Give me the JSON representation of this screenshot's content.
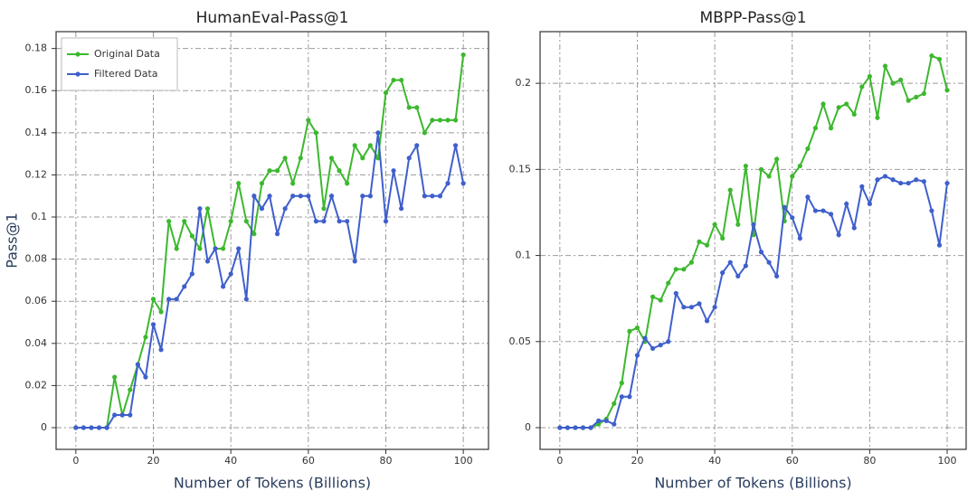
{
  "chart_data": [
    {
      "type": "line",
      "title": "HumanEval-Pass@1",
      "xlabel": "Number of Tokens (Billions)",
      "ylabel": "Pass@1",
      "x": [
        0,
        2,
        4,
        6,
        8,
        10,
        12,
        14,
        16,
        18,
        20,
        22,
        24,
        26,
        28,
        30,
        32,
        34,
        36,
        38,
        40,
        42,
        44,
        46,
        48,
        50,
        52,
        54,
        56,
        58,
        60,
        62,
        64,
        66,
        68,
        70,
        72,
        74,
        76,
        78,
        80,
        82,
        84,
        86,
        88,
        90,
        92,
        94,
        96,
        98,
        100
      ],
      "series": [
        {
          "name": "Original Data",
          "color": "#3cb82e",
          "values": [
            0,
            0,
            0,
            0,
            0,
            0.024,
            0.006,
            0.018,
            0.03,
            0.043,
            0.061,
            0.055,
            0.098,
            0.085,
            0.098,
            0.091,
            0.085,
            0.104,
            0.085,
            0.085,
            0.098,
            0.116,
            0.098,
            0.092,
            0.116,
            0.122,
            0.122,
            0.128,
            0.116,
            0.128,
            0.146,
            0.14,
            0.104,
            0.128,
            0.122,
            0.116,
            0.134,
            0.128,
            0.134,
            0.128,
            0.159,
            0.165,
            0.165,
            0.152,
            0.152,
            0.14,
            0.146,
            0.146,
            0.146,
            0.146,
            0.177
          ]
        },
        {
          "name": "Filtered Data",
          "color": "#3f5fcc",
          "values": [
            0,
            0,
            0,
            0,
            0,
            0.006,
            0.006,
            0.006,
            0.03,
            0.024,
            0.049,
            0.037,
            0.061,
            0.061,
            0.067,
            0.073,
            0.104,
            0.079,
            0.085,
            0.067,
            0.073,
            0.085,
            0.061,
            0.11,
            0.104,
            0.11,
            0.092,
            0.104,
            0.11,
            0.11,
            0.11,
            0.098,
            0.098,
            0.11,
            0.098,
            0.098,
            0.079,
            0.11,
            0.11,
            0.14,
            0.098,
            0.122,
            0.104,
            0.128,
            0.134,
            0.11,
            0.11,
            0.11,
            0.116,
            0.134,
            0.116
          ]
        }
      ],
      "xlim": [
        -5.1,
        106.5
      ],
      "xticks": [
        0,
        20,
        40,
        60,
        80,
        100
      ],
      "ylim": [
        -0.0103,
        0.188
      ],
      "yticks": [
        0,
        0.02,
        0.04,
        0.06,
        0.08,
        0.1,
        0.12,
        0.14,
        0.16,
        0.18
      ],
      "grid": true,
      "legend": "upper left"
    },
    {
      "type": "line",
      "title": "MBPP-Pass@1",
      "xlabel": "Number of Tokens (Billions)",
      "x": [
        0,
        2,
        4,
        6,
        8,
        10,
        12,
        14,
        16,
        18,
        20,
        22,
        24,
        26,
        28,
        30,
        32,
        34,
        36,
        38,
        40,
        42,
        44,
        46,
        48,
        50,
        52,
        54,
        56,
        58,
        60,
        62,
        64,
        66,
        68,
        70,
        72,
        74,
        76,
        78,
        80,
        82,
        84,
        86,
        88,
        90,
        92,
        94,
        96,
        98,
        100
      ],
      "series": [
        {
          "color": "#3cb82e",
          "values": [
            0,
            0,
            0,
            0,
            0,
            0.002,
            0.005,
            0.014,
            0.026,
            0.056,
            0.058,
            0.05,
            0.076,
            0.074,
            0.084,
            0.092,
            0.092,
            0.096,
            0.108,
            0.106,
            0.118,
            0.11,
            0.138,
            0.118,
            0.152,
            0.112,
            0.15,
            0.146,
            0.156,
            0.12,
            0.146,
            0.152,
            0.162,
            0.174,
            0.188,
            0.174,
            0.186,
            0.188,
            0.182,
            0.198,
            0.204,
            0.18,
            0.21,
            0.2,
            0.202,
            0.19,
            0.192,
            0.194,
            0.216,
            0.214,
            0.196
          ]
        },
        {
          "color": "#3f5fcc",
          "values": [
            0,
            0,
            0,
            0,
            0,
            0.004,
            0.004,
            0.002,
            0.018,
            0.018,
            0.042,
            0.052,
            0.046,
            0.048,
            0.05,
            0.078,
            0.07,
            0.07,
            0.072,
            0.062,
            0.07,
            0.09,
            0.096,
            0.088,
            0.094,
            0.118,
            0.102,
            0.096,
            0.088,
            0.128,
            0.122,
            0.11,
            0.134,
            0.126,
            0.126,
            0.124,
            0.112,
            0.13,
            0.116,
            0.14,
            0.13,
            0.144,
            0.146,
            0.144,
            0.142,
            0.142,
            0.144,
            0.143,
            0.126,
            0.106,
            0.142
          ]
        }
      ],
      "xlim": [
        -5.1,
        104.9
      ],
      "xticks": [
        0,
        20,
        40,
        60,
        80,
        100
      ],
      "ylim": [
        -0.0126,
        0.23
      ],
      "yticks": [
        0,
        0.05,
        0.1,
        0.15,
        0.2
      ],
      "grid": true
    }
  ]
}
